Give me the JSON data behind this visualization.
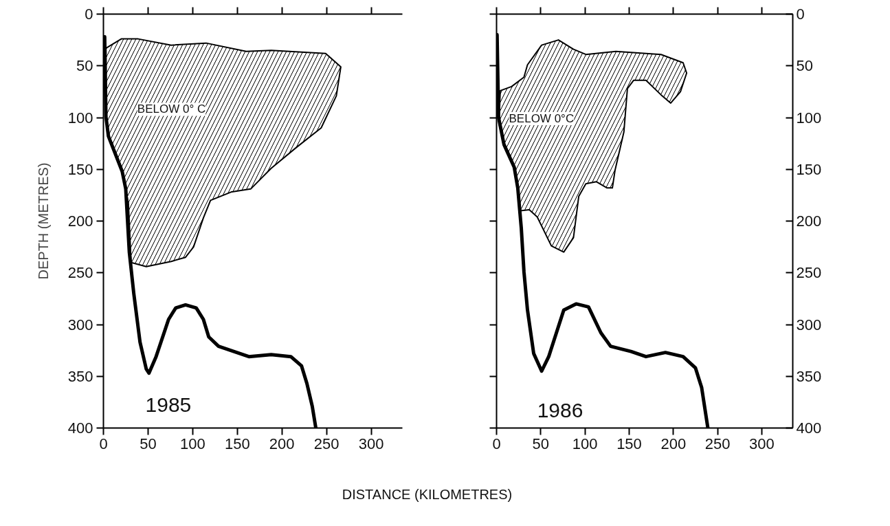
{
  "chart_data": [
    {
      "type": "line",
      "xlabel": "DISTANCE (KILOMETRES)",
      "ylabel": "DEPTH (METRES)",
      "xlim": [
        0,
        335
      ],
      "xticks": [
        0,
        50,
        100,
        150,
        200,
        250,
        300
      ],
      "ylim": [
        400,
        0
      ],
      "yticks": [
        0,
        50,
        100,
        150,
        200,
        250,
        300,
        350,
        400
      ],
      "series": [
        {
          "type": "area",
          "color": "#000000",
          "x": [
            2.8,
            20,
            39,
            76,
            115,
            160,
            188,
            249,
            266,
            261,
            244,
            216,
            188,
            165,
            143,
            120,
            112,
            101,
            92,
            76,
            48,
            31,
            28,
            22,
            5.6,
            2.8
          ],
          "values": [
            33,
            24,
            24,
            30,
            28,
            36,
            35,
            38,
            51,
            79,
            110,
            129,
            149,
            169,
            172,
            180,
            197,
            225,
            235,
            239,
            244,
            240,
            183,
            155,
            118,
            99
          ]
        },
        {
          "color": "#000000",
          "x": [
            1.4,
            2.8,
            5.6,
            21,
            25,
            29,
            34,
            41,
            48,
            51,
            59,
            73,
            81,
            92,
            104,
            112,
            118,
            129,
            146,
            163,
            188,
            210,
            222,
            228,
            234,
            238
          ],
          "values": [
            22,
            99,
            118,
            152,
            169,
            230,
            270,
            317,
            343,
            347,
            331,
            295,
            284,
            281,
            284,
            295,
            312,
            321,
            326,
            331,
            329,
            331,
            340,
            357,
            379,
            400
          ]
        }
      ],
      "annotations": [
        "BELOW 0° C",
        "1985"
      ]
    },
    {
      "type": "line",
      "xlim": [
        0,
        335
      ],
      "xticks": [
        0,
        50,
        100,
        150,
        200,
        250,
        300
      ],
      "ylim": [
        400,
        0
      ],
      "yticks": [
        0,
        50,
        100,
        150,
        200,
        250,
        300,
        350,
        400
      ],
      "series": [
        {
          "type": "area",
          "color": "#000000",
          "x": [
            4.2,
            17,
            31,
            35,
            51,
            70,
            87,
            101,
            135,
            186,
            211,
            215,
            208,
            197,
            186,
            169,
            155,
            148,
            144,
            134,
            131,
            125,
            113,
            101,
            93,
            87,
            76,
            62,
            46,
            37,
            27,
            24,
            20,
            8.4,
            2.8
          ],
          "values": [
            74,
            70,
            61,
            49,
            30,
            25,
            34,
            39,
            36,
            39,
            47,
            57,
            75,
            86,
            78,
            64,
            64,
            72,
            114,
            151,
            168,
            168,
            162,
            164,
            176,
            216,
            230,
            224,
            196,
            189,
            190,
            168,
            148,
            126,
            106
          ]
        },
        {
          "color": "#000000",
          "x": [
            0.6,
            2.3,
            8.4,
            20,
            24,
            28,
            31,
            35,
            42,
            51,
            59,
            76,
            90,
            104,
            118,
            129,
            152,
            169,
            191,
            211,
            225,
            232,
            239
          ],
          "values": [
            20,
            100,
            126,
            148,
            168,
            207,
            249,
            286,
            328,
            345,
            331,
            286,
            280,
            283,
            308,
            321,
            326,
            331,
            327,
            331,
            342,
            361,
            400
          ]
        }
      ],
      "annotations": [
        "BELOW 0°C",
        "1986"
      ]
    }
  ]
}
